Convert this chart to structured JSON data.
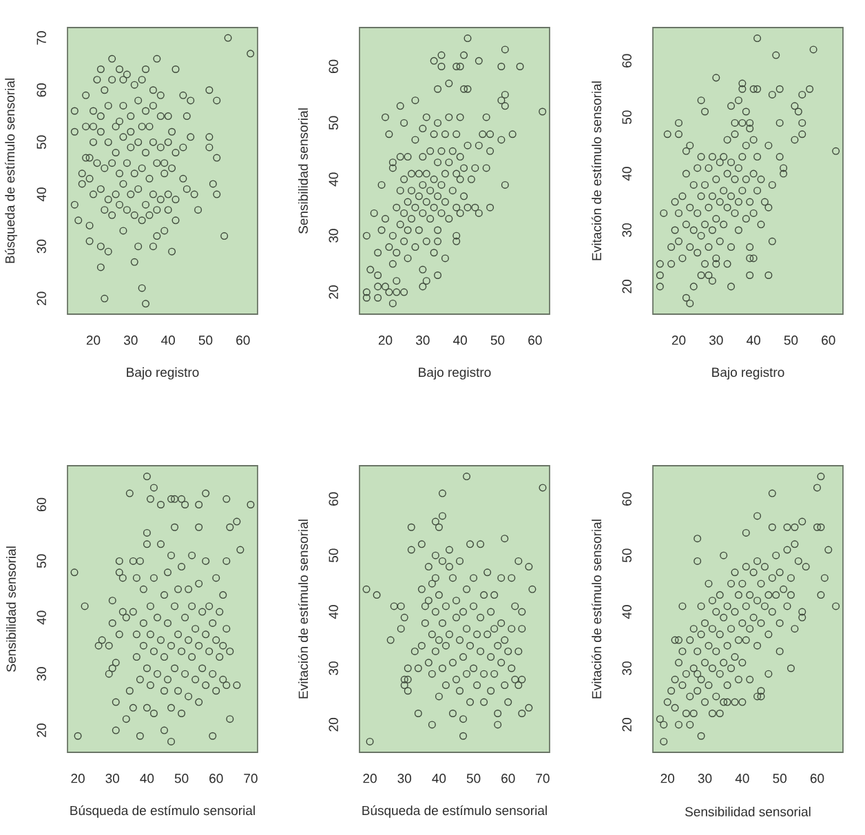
{
  "chart_data": [
    {
      "type": "scatter",
      "xlabel": "Bajo registro",
      "ylabel": "Búsqueda de estímulo sensorial",
      "color": "#3f4a3c",
      "marker": "circle",
      "xlim": [
        13.1,
        63.9
      ],
      "ylim": [
        17,
        72
      ],
      "xticks": [
        20,
        30,
        40,
        50,
        60
      ],
      "yticks": [
        20,
        30,
        40,
        50,
        60,
        70
      ],
      "x": [
        56,
        62,
        25,
        37,
        22,
        27,
        34,
        42,
        51,
        53,
        46,
        44,
        18,
        21,
        15,
        15,
        51,
        51,
        53,
        44,
        46,
        45,
        44,
        45,
        47,
        52,
        53,
        48,
        55,
        15,
        16,
        19,
        22,
        24,
        22,
        23,
        34,
        33,
        31,
        32,
        36,
        41,
        39,
        37,
        28,
        17,
        18,
        17,
        20,
        22,
        24,
        26,
        28,
        30,
        32,
        34,
        36,
        38,
        40,
        23,
        25,
        28,
        31,
        33,
        36,
        38,
        20,
        22,
        24,
        26,
        28,
        30,
        32,
        34,
        36,
        38,
        40,
        42,
        21,
        23,
        25,
        27,
        29,
        31,
        33,
        35,
        37,
        39,
        41,
        20,
        22,
        24,
        26,
        28,
        30,
        32,
        34,
        36,
        38,
        40,
        42,
        23,
        25,
        27,
        29,
        31,
        33,
        35,
        37,
        40,
        42,
        19,
        19,
        20,
        18,
        41,
        39,
        35,
        30,
        27,
        33,
        19,
        29
      ],
      "values": [
        70,
        67,
        66,
        66,
        64,
        64,
        64,
        64,
        60,
        58,
        58,
        59,
        59,
        62,
        56,
        52,
        51,
        49,
        47,
        49,
        51,
        55,
        43,
        41,
        40,
        42,
        40,
        37,
        32,
        38,
        35,
        31,
        30,
        29,
        26,
        20,
        19,
        22,
        27,
        30,
        30,
        29,
        33,
        32,
        33,
        44,
        47,
        42,
        56,
        55,
        57,
        53,
        57,
        55,
        58,
        56,
        57,
        55,
        55,
        60,
        62,
        62,
        61,
        62,
        60,
        59,
        50,
        52,
        50,
        48,
        51,
        49,
        50,
        48,
        50,
        49,
        50,
        48,
        46,
        45,
        46,
        44,
        46,
        44,
        45,
        43,
        46,
        44,
        45,
        40,
        41,
        39,
        40,
        42,
        40,
        41,
        38,
        40,
        39,
        40,
        39,
        37,
        36,
        38,
        37,
        36,
        35,
        36,
        37,
        37,
        35,
        43,
        47,
        53,
        53,
        52,
        46,
        53,
        52,
        54,
        53,
        34,
        63
      ]
    },
    {
      "type": "scatter",
      "xlabel": "Bajo registro",
      "ylabel": "Sensibilidad sensorial",
      "color": "#3f4a3c",
      "marker": "circle",
      "xlim": [
        13.1,
        63.9
      ],
      "ylim": [
        16.1,
        66.9
      ],
      "xticks": [
        20,
        30,
        40,
        50,
        60
      ],
      "yticks": [
        20,
        30,
        40,
        50,
        60
      ],
      "x": [
        42,
        52,
        56,
        51,
        62,
        52,
        52,
        51,
        54,
        51,
        52,
        48,
        45,
        33,
        35,
        35,
        41,
        39,
        40,
        34,
        37,
        41,
        42,
        15,
        15,
        15,
        16,
        17,
        18,
        19,
        20,
        21,
        22,
        23,
        25,
        30,
        31,
        34,
        30,
        24,
        28,
        25,
        45,
        47,
        48,
        18,
        19,
        20,
        21,
        22,
        22,
        23,
        23,
        24,
        24,
        25,
        25,
        25,
        26,
        26,
        26,
        26,
        27,
        27,
        27,
        28,
        28,
        28,
        29,
        29,
        29,
        30,
        30,
        30,
        30,
        31,
        31,
        31,
        31,
        32,
        32,
        32,
        33,
        33,
        33,
        34,
        34,
        34,
        34,
        35,
        35,
        35,
        36,
        36,
        36,
        37,
        37,
        37,
        38,
        38,
        39,
        39,
        39,
        40,
        40,
        40,
        40,
        41,
        41,
        42,
        42,
        43,
        44,
        44,
        45,
        46,
        47,
        48,
        39,
        39,
        36,
        33,
        34,
        23,
        21,
        20,
        22,
        22,
        24,
        18,
        18
      ],
      "values": [
        65,
        63,
        60,
        60,
        52,
        55,
        53,
        54,
        48,
        47,
        39,
        35,
        61,
        61,
        62,
        60,
        62,
        60,
        60,
        56,
        57,
        56,
        56,
        30,
        20,
        19,
        24,
        34,
        23,
        39,
        51,
        48,
        18,
        20,
        20,
        24,
        22,
        23,
        21,
        53,
        54,
        50,
        46,
        42,
        45,
        27,
        31,
        33,
        28,
        25,
        30,
        35,
        27,
        32,
        38,
        29,
        34,
        40,
        26,
        31,
        36,
        44,
        33,
        38,
        41,
        28,
        35,
        47,
        31,
        37,
        41,
        34,
        39,
        44,
        49,
        29,
        36,
        41,
        51,
        33,
        38,
        45,
        35,
        40,
        48,
        31,
        37,
        43,
        50,
        34,
        39,
        45,
        36,
        41,
        48,
        33,
        43,
        51,
        38,
        45,
        35,
        41,
        48,
        34,
        40,
        44,
        51,
        37,
        42,
        35,
        46,
        40,
        35,
        42,
        34,
        48,
        51,
        48,
        29,
        30,
        26,
        27,
        29,
        22,
        20,
        21,
        43,
        42,
        44,
        19,
        21
      ]
    },
    {
      "type": "scatter",
      "xlabel": "Bajo registro",
      "ylabel": "Evitación de estímulo sensorial",
      "color": "#3f4a3c",
      "marker": "circle",
      "xlim": [
        13.1,
        63.9
      ],
      "ylim": [
        15.1,
        65.9
      ],
      "xticks": [
        20,
        30,
        40,
        50,
        60
      ],
      "yticks": [
        20,
        30,
        40,
        50,
        60
      ],
      "x": [
        41,
        46,
        56,
        62,
        55,
        53,
        51,
        52,
        53,
        53,
        51,
        47,
        45,
        47,
        47,
        48,
        48,
        45,
        45,
        44,
        39,
        34,
        24,
        22,
        23,
        15,
        15,
        15,
        16,
        17,
        20,
        20,
        30,
        37,
        37,
        40,
        41,
        26,
        27,
        18,
        18,
        19,
        19,
        20,
        20,
        21,
        21,
        22,
        22,
        22,
        23,
        23,
        23,
        24,
        24,
        25,
        25,
        25,
        26,
        26,
        26,
        27,
        27,
        27,
        28,
        28,
        28,
        29,
        29,
        29,
        30,
        30,
        30,
        31,
        31,
        31,
        32,
        32,
        32,
        33,
        33,
        33,
        34,
        34,
        34,
        35,
        35,
        35,
        36,
        36,
        36,
        37,
        37,
        37,
        38,
        38,
        38,
        39,
        39,
        39,
        40,
        40,
        40,
        41,
        41,
        42,
        42,
        43,
        44,
        44,
        39,
        40,
        26,
        28,
        29,
        30,
        33,
        34,
        36,
        38,
        35,
        39
      ],
      "values": [
        64,
        61,
        62,
        44,
        55,
        54,
        52,
        51,
        49,
        47,
        46,
        55,
        54,
        49,
        43,
        41,
        40,
        38,
        28,
        22,
        22,
        20,
        20,
        18,
        17,
        24,
        22,
        20,
        33,
        47,
        49,
        47,
        57,
        56,
        55,
        55,
        55,
        53,
        51,
        27,
        24,
        30,
        35,
        28,
        33,
        25,
        36,
        31,
        40,
        44,
        27,
        34,
        45,
        30,
        38,
        26,
        33,
        41,
        29,
        36,
        43,
        31,
        38,
        24,
        34,
        41,
        27,
        36,
        43,
        30,
        32,
        39,
        25,
        35,
        42,
        28,
        37,
        43,
        31,
        34,
        40,
        46,
        36,
        42,
        27,
        33,
        39,
        47,
        35,
        41,
        30,
        37,
        43,
        49,
        32,
        39,
        45,
        35,
        27,
        48,
        40,
        33,
        46,
        37,
        43,
        31,
        39,
        35,
        45,
        34,
        25,
        25,
        22,
        22,
        21,
        24,
        24,
        52,
        53,
        51,
        49,
        49
      ]
    },
    {
      "type": "scatter",
      "xlabel": "Búsqueda de estímulo sensorial",
      "ylabel": "Sensibilidad sensorial",
      "color": "#3f4a3c",
      "marker": "circle",
      "xlim": [
        17,
        72
      ],
      "ylim": [
        16.1,
        66.9
      ],
      "xticks": [
        20,
        30,
        40,
        50,
        60,
        70
      ],
      "yticks": [
        20,
        30,
        40,
        50,
        60
      ],
      "x": [
        19,
        20,
        22,
        26,
        27,
        29,
        29,
        30,
        30,
        30,
        31,
        31,
        31,
        32,
        32,
        35,
        40,
        42,
        41,
        44,
        70,
        66,
        64,
        67,
        63,
        63,
        57,
        55,
        55,
        59,
        38,
        47,
        64,
        66,
        47,
        48,
        50,
        51,
        40,
        36,
        37,
        37,
        38,
        38,
        39,
        39,
        39,
        40,
        40,
        40,
        41,
        41,
        41,
        42,
        42,
        42,
        43,
        43,
        44,
        44,
        45,
        45,
        45,
        45,
        46,
        46,
        46,
        47,
        47,
        47,
        48,
        48,
        48,
        49,
        49,
        49,
        50,
        50,
        50,
        51,
        51,
        52,
        52,
        52,
        53,
        53,
        53,
        54,
        54,
        55,
        55,
        55,
        56,
        56,
        57,
        57,
        57,
        58,
        58,
        59,
        59,
        60,
        60,
        60,
        61,
        61,
        62,
        62,
        62,
        63,
        64,
        63,
        35,
        36,
        34,
        33,
        34,
        32,
        33,
        37,
        36
      ],
      "values": [
        48,
        19,
        42,
        35,
        36,
        35,
        30,
        31,
        43,
        39,
        32,
        25,
        20,
        50,
        48,
        62,
        65,
        63,
        61,
        60,
        60,
        57,
        56,
        52,
        50,
        61,
        62,
        60,
        56,
        19,
        19,
        18,
        22,
        28,
        61,
        61,
        61,
        60,
        55,
        41,
        37,
        33,
        29,
        50,
        45,
        39,
        35,
        31,
        24,
        53,
        42,
        37,
        28,
        47,
        34,
        23,
        40,
        30,
        36,
        53,
        44,
        33,
        27,
        20,
        39,
        48,
        29,
        35,
        51,
        24,
        42,
        31,
        56,
        37,
        27,
        45,
        34,
        49,
        23,
        40,
        30,
        36,
        45,
        26,
        33,
        42,
        51,
        29,
        38,
        35,
        46,
        25,
        41,
        31,
        37,
        28,
        50,
        34,
        42,
        30,
        39,
        36,
        27,
        47,
        33,
        41,
        35,
        29,
        44,
        38,
        34,
        28,
        27,
        24,
        40,
        41,
        22,
        37,
        47,
        47,
        50
      ]
    },
    {
      "type": "scatter",
      "xlabel": "Búsqueda de estímulo sensorial",
      "ylabel": "Evitación de estímulo sensorial",
      "color": "#3f4a3c",
      "marker": "circle",
      "xlim": [
        17,
        72
      ],
      "ylim": [
        15.1,
        65.9
      ],
      "xticks": [
        20,
        30,
        40,
        50,
        60,
        70
      ],
      "yticks": [
        20,
        30,
        40,
        50,
        60
      ],
      "x": [
        19,
        20,
        22,
        26,
        27,
        29,
        29,
        30,
        30,
        31,
        31,
        31,
        30,
        32,
        32,
        35,
        34,
        38,
        48,
        41,
        41,
        39,
        40,
        70,
        67,
        66,
        66,
        63,
        59,
        61,
        47,
        57,
        64,
        35,
        36,
        37,
        37,
        38,
        38,
        39,
        39,
        39,
        40,
        40,
        40,
        41,
        41,
        41,
        42,
        42,
        42,
        43,
        43,
        44,
        44,
        44,
        45,
        45,
        45,
        46,
        46,
        46,
        47,
        47,
        47,
        48,
        48,
        48,
        49,
        49,
        49,
        50,
        50,
        50,
        51,
        51,
        52,
        52,
        52,
        53,
        53,
        53,
        54,
        54,
        55,
        55,
        55,
        56,
        56,
        56,
        57,
        57,
        58,
        58,
        58,
        59,
        59,
        60,
        60,
        61,
        61,
        62,
        62,
        63,
        63,
        64,
        64,
        64,
        33,
        34,
        36,
        35,
        37,
        38,
        39,
        43
      ],
      "values": [
        44,
        17,
        43,
        35,
        41,
        41,
        37,
        39,
        28,
        28,
        26,
        30,
        27,
        55,
        51,
        52,
        22,
        20,
        64,
        61,
        57,
        56,
        55,
        62,
        44,
        48,
        23,
        49,
        53,
        46,
        18,
        20,
        22,
        34,
        38,
        31,
        42,
        36,
        29,
        40,
        33,
        46,
        35,
        25,
        43,
        38,
        30,
        49,
        34,
        27,
        41,
        36,
        51,
        31,
        46,
        22,
        39,
        28,
        42,
        35,
        49,
        26,
        32,
        40,
        21,
        44,
        37,
        29,
        34,
        52,
        24,
        41,
        30,
        46,
        36,
        27,
        33,
        39,
        52,
        29,
        43,
        24,
        36,
        47,
        32,
        40,
        26,
        37,
        29,
        43,
        34,
        22,
        31,
        38,
        46,
        27,
        35,
        33,
        24,
        30,
        37,
        28,
        41,
        33,
        27,
        28,
        37,
        40,
        33,
        30,
        41,
        44,
        48,
        45,
        50,
        48
      ]
    },
    {
      "type": "scatter",
      "xlabel": "Sensibilidad sensorial",
      "ylabel": "Evitación de estímulo sensorial",
      "color": "#3f4a3c",
      "marker": "circle",
      "xlim": [
        16.1,
        66.9
      ],
      "ylim": [
        15.1,
        65.9
      ],
      "xticks": [
        20,
        30,
        40,
        50,
        60
      ],
      "yticks": [
        20,
        30,
        40,
        50,
        60
      ],
      "x": [
        61,
        60,
        48,
        44,
        65,
        53,
        47,
        45,
        45,
        29,
        19,
        18,
        19,
        28,
        28,
        41,
        48,
        52,
        54,
        56,
        60,
        61,
        63,
        62,
        61,
        55,
        57,
        56,
        56,
        54,
        21,
        20,
        22,
        23,
        26,
        24,
        22,
        23,
        22,
        23,
        24,
        24,
        25,
        25,
        26,
        26,
        27,
        27,
        28,
        28,
        29,
        29,
        29,
        30,
        30,
        30,
        31,
        31,
        31,
        32,
        32,
        32,
        33,
        33,
        33,
        34,
        34,
        34,
        35,
        35,
        35,
        35,
        36,
        36,
        36,
        37,
        37,
        37,
        38,
        38,
        38,
        39,
        39,
        39,
        40,
        40,
        40,
        41,
        41,
        41,
        42,
        42,
        42,
        43,
        43,
        44,
        44,
        44,
        45,
        45,
        46,
        46,
        47,
        47,
        48,
        48,
        49,
        49,
        50,
        50,
        50,
        51,
        52,
        52,
        53,
        53,
        54,
        44,
        40,
        38,
        36,
        34,
        27,
        28,
        32
      ],
      "values": [
        64,
        62,
        61,
        57,
        41,
        30,
        29,
        26,
        25,
        18,
        17,
        21,
        20,
        53,
        49,
        54,
        55,
        55,
        55,
        56,
        55,
        55,
        51,
        46,
        43,
        49,
        48,
        40,
        39,
        37,
        26,
        24,
        23,
        20,
        20,
        41,
        35,
        35,
        28,
        31,
        27,
        33,
        22,
        29,
        35,
        25,
        30,
        37,
        26,
        33,
        28,
        36,
        41,
        31,
        24,
        38,
        27,
        34,
        45,
        30,
        37,
        42,
        25,
        33,
        40,
        29,
        36,
        43,
        31,
        39,
        24,
        50,
        34,
        41,
        27,
        37,
        45,
        30,
        32,
        40,
        47,
        35,
        43,
        28,
        38,
        31,
        45,
        41,
        35,
        48,
        37,
        43,
        28,
        39,
        47,
        34,
        42,
        49,
        38,
        45,
        41,
        48,
        43,
        36,
        46,
        40,
        43,
        50,
        38,
        47,
        33,
        44,
        41,
        51,
        46,
        43,
        52,
        25,
        24,
        24,
        24,
        22,
        22,
        29,
        22
      ]
    }
  ]
}
